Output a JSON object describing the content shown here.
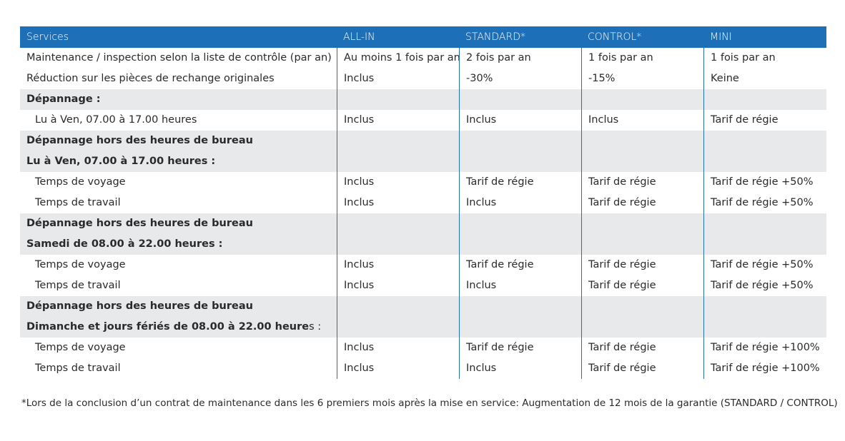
{
  "header": [
    "Services",
    "ALL-IN",
    "STANDARD*",
    "CONTROL*",
    "MINI"
  ],
  "rows": [
    {
      "cells": [
        "Maintenance / inspection selon la liste de contrôle (par an)",
        "Au moins 1 fois par an",
        "2 fois par an",
        "1 fois par an",
        "1 fois par an"
      ]
    },
    {
      "cells": [
        "Réduction sur les pièces de rechange originales",
        "Inclus",
        "-30%",
        "-15%",
        "Keine"
      ]
    },
    {
      "cells": [
        "Dépannage :",
        "",
        "",
        "",
        ""
      ]
    },
    {
      "cells": [
        "Lu à Ven, 07.00 à 17.00 heures",
        "Inclus",
        "Inclus",
        "Inclus",
        "Tarif de régie"
      ]
    },
    {
      "cells": [
        "Dépannage hors des heures de bureau",
        "",
        "",
        "",
        ""
      ]
    },
    {
      "cells": [
        "Lu à Ven, 07.00 à 17.00 heures :",
        "",
        "",
        "",
        ""
      ]
    },
    {
      "cells": [
        "Temps de voyage",
        "Inclus",
        "Tarif de régie",
        "Tarif de régie",
        "Tarif de régie  +50%"
      ]
    },
    {
      "cells": [
        "Temps de travail",
        "Inclus",
        "Inclus",
        "Tarif de régie",
        "Tarif de régie  +50%"
      ]
    },
    {
      "cells": [
        "Dépannage hors des heures de bureau",
        "",
        "",
        "",
        ""
      ]
    },
    {
      "cells": [
        "Samedi de 08.00 à 22.00 heures :",
        "",
        "",
        "",
        ""
      ]
    },
    {
      "cells": [
        "Temps de voyage",
        "Inclus",
        "Tarif de régie",
        "Tarif de régie",
        "Tarif de régie  +50%"
      ]
    },
    {
      "cells": [
        "Temps de travail",
        "Inclus",
        "Inclus",
        "Tarif de régie",
        "Tarif de régie  +50%"
      ]
    },
    {
      "cells": [
        "Dépannage hors des heures de bureau",
        "",
        "",
        "",
        ""
      ]
    },
    {
      "cells": [
        "Dimanche et jours fériés de 08.00 à 22.00 heure",
        "",
        "",
        "",
        ""
      ]
    },
    {
      "cells": [
        "Temps de voyage",
        "Inclus",
        "Tarif de régie",
        "Tarif de régie",
        "Tarif de régie  +100%"
      ]
    },
    {
      "cells": [
        "Temps de travail",
        "Inclus",
        "Inclus",
        "Tarif de régie",
        "Tarif de régie  +100%"
      ]
    }
  ],
  "row13_suffix": "s :",
  "footnote": "*Lors de la conclusion d’un contrat de maintenance dans les 6 premiers mois après la mise en service: Augmentation de 12 mois de la garantie (STANDARD / CONTROL)",
  "colors": {
    "header_bg": "#1d6fb8",
    "band_bg": "#e8e9ea",
    "divider": "#2a6cb0"
  }
}
